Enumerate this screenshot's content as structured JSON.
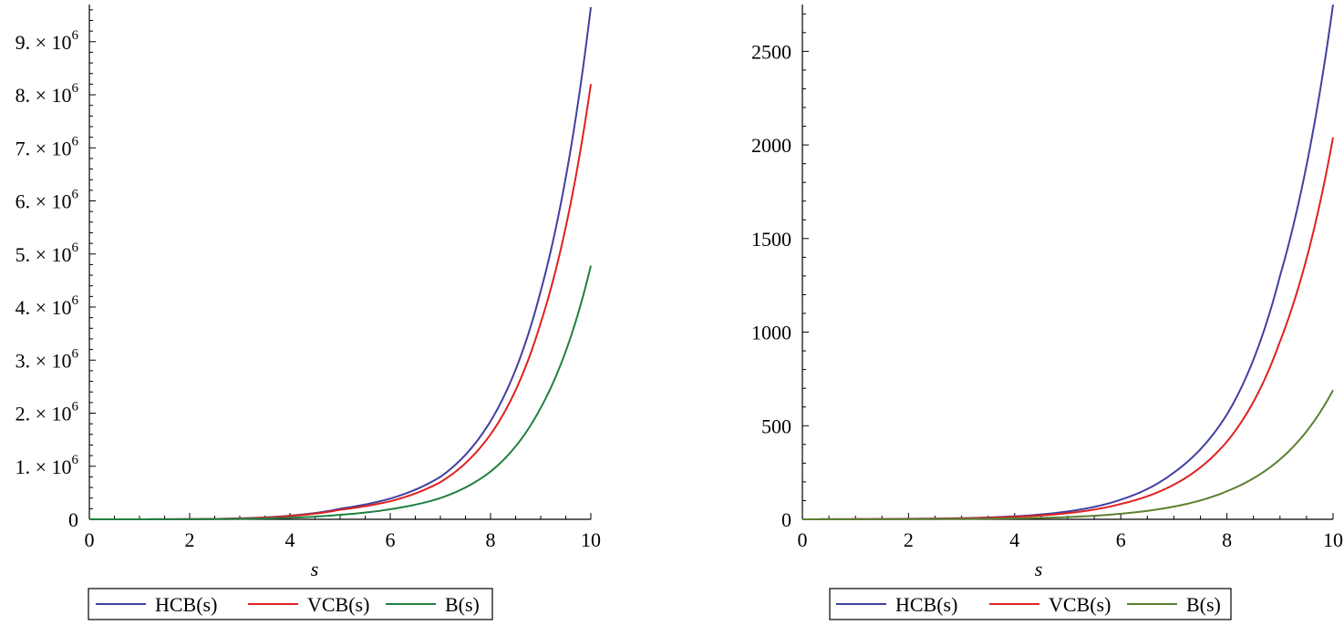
{
  "chart_data": [
    {
      "type": "line",
      "title": "",
      "xlabel": "s",
      "ylabel": "",
      "xlim": [
        0,
        10
      ],
      "ylim": [
        0,
        9700000
      ],
      "grid": false,
      "legend_position": "bottom",
      "x_ticks": [
        "0",
        "2",
        "4",
        "6",
        "8",
        "10"
      ],
      "y_ticks": [
        {
          "value": 0,
          "mantissa": "0",
          "times": "",
          "base": "",
          "exp": ""
        },
        {
          "value": 1000000,
          "mantissa": "1.",
          "times": "×",
          "base": "10",
          "exp": "6"
        },
        {
          "value": 2000000,
          "mantissa": "2.",
          "times": "×",
          "base": "10",
          "exp": "6"
        },
        {
          "value": 3000000,
          "mantissa": "3.",
          "times": "×",
          "base": "10",
          "exp": "6"
        },
        {
          "value": 4000000,
          "mantissa": "4.",
          "times": "×",
          "base": "10",
          "exp": "6"
        },
        {
          "value": 5000000,
          "mantissa": "5.",
          "times": "×",
          "base": "10",
          "exp": "6"
        },
        {
          "value": 6000000,
          "mantissa": "6.",
          "times": "×",
          "base": "10",
          "exp": "6"
        },
        {
          "value": 7000000,
          "mantissa": "7.",
          "times": "×",
          "base": "10",
          "exp": "6"
        },
        {
          "value": 8000000,
          "mantissa": "8.",
          "times": "×",
          "base": "10",
          "exp": "6"
        },
        {
          "value": 9000000,
          "mantissa": "9.",
          "times": "×",
          "base": "10",
          "exp": "6"
        }
      ],
      "x": [
        0,
        1,
        2,
        3,
        4,
        5,
        6,
        7,
        8,
        9,
        10
      ],
      "series": [
        {
          "name": "HCB(s)",
          "color": "#4040a0",
          "values": [
            0,
            900,
            3600,
            18000,
            70000,
            200000,
            390000,
            800000,
            1850000,
            4300000,
            9650000
          ]
        },
        {
          "name": "VCB(s)",
          "color": "#e02020",
          "values": [
            0,
            800,
            3200,
            16000,
            63000,
            180000,
            340000,
            700000,
            1600000,
            3700000,
            8200000
          ]
        },
        {
          "name": "B(s)",
          "color": "#208040",
          "values": [
            0,
            300,
            1500,
            8000,
            30000,
            85000,
            190000,
            400000,
            900000,
            2100000,
            4780000
          ]
        }
      ]
    },
    {
      "type": "line",
      "title": "",
      "xlabel": "s",
      "ylabel": "",
      "xlim": [
        0,
        10
      ],
      "ylim": [
        0,
        2750
      ],
      "grid": false,
      "legend_position": "bottom",
      "x_ticks": [
        "0",
        "2",
        "4",
        "6",
        "8",
        "10"
      ],
      "y_ticks": [
        {
          "value": 0,
          "label": "0"
        },
        {
          "value": 500,
          "label": "500"
        },
        {
          "value": 1000,
          "label": "1000"
        },
        {
          "value": 1500,
          "label": "1500"
        },
        {
          "value": 2000,
          "label": "2000"
        },
        {
          "value": 2500,
          "label": "2500"
        }
      ],
      "x": [
        0,
        1,
        2,
        3,
        4,
        5,
        6,
        7,
        8,
        9,
        10
      ],
      "series": [
        {
          "name": "HCB(s)",
          "color": "#4040a0",
          "values": [
            0,
            1,
            3,
            6,
            16,
            42,
            105,
            250,
            560,
            1300,
            2750
          ]
        },
        {
          "name": "VCB(s)",
          "color": "#e02020",
          "values": [
            0,
            1,
            2,
            5,
            13,
            33,
            82,
            185,
            415,
            950,
            2040
          ]
        },
        {
          "name": "B(s)",
          "color": "#5a8030",
          "values": [
            0,
            0,
            1,
            2,
            5,
            12,
            30,
            68,
            150,
            320,
            690
          ]
        }
      ]
    }
  ]
}
